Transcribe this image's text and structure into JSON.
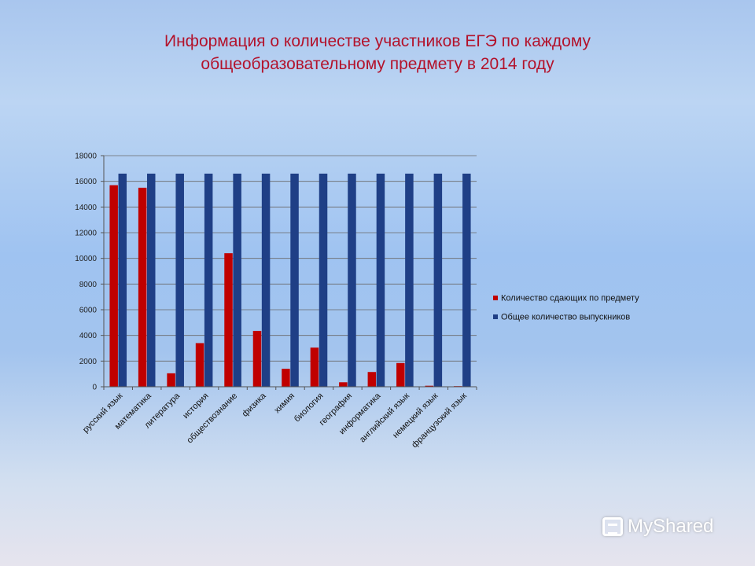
{
  "title": {
    "line1": "Информация о количестве участников ЕГЭ по каждому",
    "line2": "общеобразовательному предмету в 2014 году"
  },
  "watermark": "MyShared",
  "chart_data": {
    "type": "bar",
    "title": "",
    "xlabel": "",
    "ylabel": "",
    "ylim": [
      0,
      18000
    ],
    "yticks": [
      0,
      2000,
      4000,
      6000,
      8000,
      10000,
      12000,
      14000,
      16000,
      18000
    ],
    "grid": true,
    "legend_position": "right",
    "categories": [
      "русский язык",
      "математика",
      "литература",
      "история",
      "обществознание",
      "физика",
      "химия",
      "биология",
      "география",
      "информатика",
      "английский язык",
      "немецкий язык",
      "французский язык"
    ],
    "series": [
      {
        "name": "Количество сдающих по предмету",
        "color": "#c00000",
        "values": [
          15700,
          15500,
          1050,
          3400,
          10400,
          4350,
          1400,
          3050,
          350,
          1150,
          1850,
          80,
          50
        ]
      },
      {
        "name": "Общее количество выпускников",
        "color": "#1f3f86",
        "values": [
          16600,
          16600,
          16600,
          16600,
          16600,
          16600,
          16600,
          16600,
          16600,
          16600,
          16600,
          16600,
          16600
        ]
      }
    ]
  }
}
